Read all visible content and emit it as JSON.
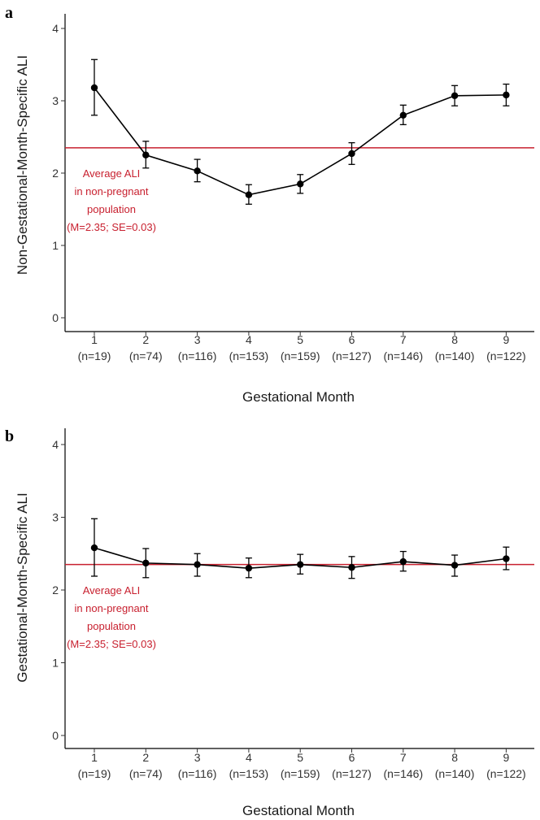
{
  "chart_data": [
    {
      "type": "line",
      "panel_label": "a",
      "title": "",
      "xlabel": "Gestational Month",
      "ylabel": "Non-Gestational-Month-Specific ALI",
      "ylim": [
        0,
        4
      ],
      "yticks": [
        "0",
        "1",
        "2",
        "3",
        "4"
      ],
      "categories": [
        "1",
        "2",
        "3",
        "4",
        "5",
        "6",
        "7",
        "8",
        "9"
      ],
      "category_counts": [
        "(n=19)",
        "(n=74)",
        "(n=116)",
        "(n=153)",
        "(n=159)",
        "(n=127)",
        "(n=146)",
        "(n=140)",
        "(n=122)"
      ],
      "series": [
        {
          "values": [
            3.18,
            2.25,
            2.03,
            1.7,
            1.85,
            2.27,
            2.8,
            3.07,
            3.08
          ],
          "error_low": [
            2.8,
            2.07,
            1.88,
            1.57,
            1.72,
            2.12,
            2.67,
            2.93,
            2.93
          ],
          "error_high": [
            3.57,
            2.44,
            2.19,
            1.84,
            1.98,
            2.42,
            2.94,
            3.21,
            3.23
          ],
          "color": "#000000"
        }
      ],
      "reference_line": {
        "value": 2.35,
        "color": "#c8202f"
      },
      "annotation": [
        "Average ALI",
        "in non-pregnant",
        "population",
        "(M=2.35; SE=0.03)"
      ],
      "grid": false
    },
    {
      "type": "line",
      "panel_label": "b",
      "title": "",
      "xlabel": "Gestational Month",
      "ylabel": "Gestational-Month-Specific ALI",
      "ylim": [
        0,
        4
      ],
      "yticks": [
        "0",
        "1",
        "2",
        "3",
        "4"
      ],
      "categories": [
        "1",
        "2",
        "3",
        "4",
        "5",
        "6",
        "7",
        "8",
        "9"
      ],
      "category_counts": [
        "(n=19)",
        "(n=74)",
        "(n=116)",
        "(n=153)",
        "(n=159)",
        "(n=127)",
        "(n=146)",
        "(n=140)",
        "(n=122)"
      ],
      "series": [
        {
          "values": [
            2.58,
            2.37,
            2.35,
            2.3,
            2.35,
            2.31,
            2.39,
            2.34,
            2.43
          ],
          "error_low": [
            2.19,
            2.17,
            2.19,
            2.17,
            2.22,
            2.16,
            2.26,
            2.19,
            2.28
          ],
          "error_high": [
            2.98,
            2.57,
            2.5,
            2.44,
            2.49,
            2.46,
            2.53,
            2.48,
            2.59
          ],
          "color": "#000000"
        }
      ],
      "reference_line": {
        "value": 2.35,
        "color": "#c8202f"
      },
      "annotation": [
        "Average ALI",
        "in non-pregnant",
        "population",
        "(M=2.35; SE=0.03)"
      ],
      "grid": false
    }
  ]
}
